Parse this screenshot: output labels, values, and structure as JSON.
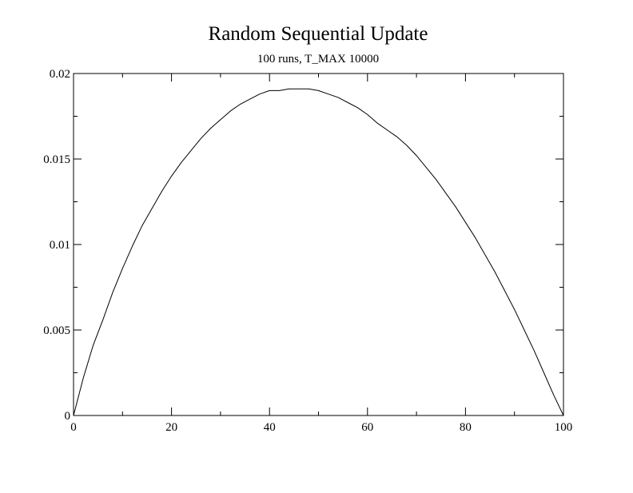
{
  "chart_data": {
    "type": "line",
    "title": "Random Sequential Update",
    "subtitle": "100 runs, T_MAX 10000",
    "xlabel": "",
    "ylabel": "",
    "xlim": [
      0,
      100
    ],
    "ylim": [
      0,
      0.02
    ],
    "x_ticks": [
      0,
      20,
      40,
      60,
      80,
      100
    ],
    "x_tick_labels": [
      "0",
      "20",
      "40",
      "60",
      "80",
      "100"
    ],
    "x_minor_ticks": [
      10,
      30,
      50,
      70,
      90
    ],
    "y_ticks": [
      0,
      0.005,
      0.01,
      0.015,
      0.02
    ],
    "y_tick_labels": [
      "0",
      "0.005",
      "0.01",
      "0.015",
      "0.02"
    ],
    "y_minor_ticks": [
      0.0025,
      0.0075,
      0.0125,
      0.0175
    ],
    "grid": false,
    "legend": "none",
    "series": [
      {
        "color": "#000000",
        "x": [
          0,
          2,
          4,
          6,
          8,
          10,
          12,
          14,
          16,
          18,
          20,
          22,
          24,
          26,
          28,
          30,
          32,
          34,
          36,
          38,
          40,
          42,
          44,
          46,
          48,
          50,
          52,
          54,
          56,
          58,
          60,
          62,
          64,
          66,
          68,
          70,
          72,
          74,
          76,
          78,
          80,
          82,
          84,
          86,
          88,
          90,
          92,
          94,
          96,
          98,
          100
        ],
        "y": [
          0,
          0.0022,
          0.0041,
          0.0056,
          0.0072,
          0.0086,
          0.0099,
          0.0111,
          0.0121,
          0.0131,
          0.014,
          0.0148,
          0.0155,
          0.0162,
          0.0168,
          0.0173,
          0.0178,
          0.0182,
          0.0185,
          0.0188,
          0.019,
          0.019,
          0.0191,
          0.0191,
          0.0191,
          0.019,
          0.0188,
          0.0186,
          0.0183,
          0.018,
          0.0176,
          0.0171,
          0.0167,
          0.0163,
          0.0158,
          0.0152,
          0.0145,
          0.0138,
          0.013,
          0.0122,
          0.0113,
          0.0104,
          0.0094,
          0.0084,
          0.0073,
          0.0062,
          0.005,
          0.0038,
          0.0025,
          0.0012,
          0
        ]
      }
    ]
  }
}
